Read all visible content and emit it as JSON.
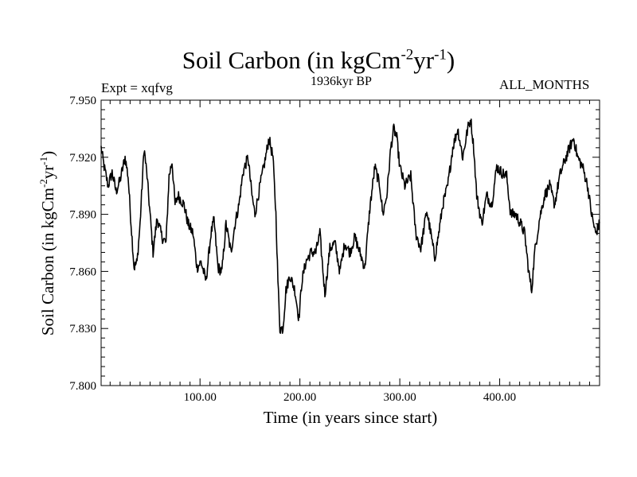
{
  "header": {
    "title_prefix": "Soil Carbon (in kgCm",
    "title_exp1": "-2",
    "title_mid": "yr",
    "title_exp2": "-1",
    "title_suffix": ")",
    "experiment": "Expt = xqfvg",
    "period": "1936kyr BP",
    "months": "ALL_MONTHS"
  },
  "axes": {
    "xlabel": "Time (in years since start)",
    "ylabel_prefix": "Soil Carbon (in kgCm",
    "ylabel_exp1": "-2",
    "ylabel_mid": "yr",
    "ylabel_exp2": "-1",
    "ylabel_suffix": ")"
  },
  "chart_data": {
    "type": "line",
    "title": "Soil Carbon (in kgCm-2yr-1)",
    "xlabel": "Time (in years since start)",
    "ylabel": "Soil Carbon (in kgCm-2yr-1)",
    "xlim": [
      1,
      500
    ],
    "ylim": [
      7.8,
      7.95
    ],
    "x_ticks": [
      100,
      200,
      300,
      400
    ],
    "x_tick_labels": [
      "100.00",
      "200.00",
      "300.00",
      "400.00"
    ],
    "y_ticks": [
      7.8,
      7.83,
      7.86,
      7.89,
      7.92,
      7.95
    ],
    "y_tick_labels": [
      "7.800",
      "7.830",
      "7.860",
      "7.890",
      "7.920",
      "7.950"
    ],
    "grid": false,
    "line_color": "#000000",
    "noise_amplitude": 0.006,
    "series": [
      {
        "name": "Soil Carbon",
        "anchors": [
          [
            1,
            7.925
          ],
          [
            4,
            7.915
          ],
          [
            8,
            7.905
          ],
          [
            12,
            7.912
          ],
          [
            16,
            7.902
          ],
          [
            20,
            7.908
          ],
          [
            25,
            7.92
          ],
          [
            28,
            7.91
          ],
          [
            31,
            7.885
          ],
          [
            34,
            7.862
          ],
          [
            37,
            7.865
          ],
          [
            40,
            7.885
          ],
          [
            44,
            7.925
          ],
          [
            47,
            7.91
          ],
          [
            50,
            7.89
          ],
          [
            53,
            7.87
          ],
          [
            57,
            7.888
          ],
          [
            62,
            7.878
          ],
          [
            66,
            7.875
          ],
          [
            69,
            7.91
          ],
          [
            72,
            7.918
          ],
          [
            75,
            7.895
          ],
          [
            78,
            7.9
          ],
          [
            84,
            7.895
          ],
          [
            88,
            7.885
          ],
          [
            93,
            7.88
          ],
          [
            97,
            7.862
          ],
          [
            101,
            7.865
          ],
          [
            106,
            7.855
          ],
          [
            111,
            7.88
          ],
          [
            114,
            7.887
          ],
          [
            118,
            7.862
          ],
          [
            122,
            7.86
          ],
          [
            126,
            7.885
          ],
          [
            131,
            7.87
          ],
          [
            135,
            7.885
          ],
          [
            139,
            7.895
          ],
          [
            143,
            7.912
          ],
          [
            148,
            7.92
          ],
          [
            152,
            7.9
          ],
          [
            155,
            7.89
          ],
          [
            160,
            7.905
          ],
          [
            165,
            7.918
          ],
          [
            169,
            7.93
          ],
          [
            173,
            7.92
          ],
          [
            176,
            7.89
          ],
          [
            178,
            7.855
          ],
          [
            180,
            7.83
          ],
          [
            183,
            7.83
          ],
          [
            186,
            7.85
          ],
          [
            190,
            7.858
          ],
          [
            195,
            7.85
          ],
          [
            199,
            7.835
          ],
          [
            202,
            7.855
          ],
          [
            206,
            7.865
          ],
          [
            211,
            7.87
          ],
          [
            216,
            7.87
          ],
          [
            220,
            7.88
          ],
          [
            225,
            7.848
          ],
          [
            230,
            7.872
          ],
          [
            235,
            7.875
          ],
          [
            240,
            7.86
          ],
          [
            245,
            7.875
          ],
          [
            250,
            7.87
          ],
          [
            255,
            7.878
          ],
          [
            260,
            7.87
          ],
          [
            265,
            7.862
          ],
          [
            270,
            7.893
          ],
          [
            275,
            7.915
          ],
          [
            280,
            7.905
          ],
          [
            283,
            7.89
          ],
          [
            287,
            7.9
          ],
          [
            291,
            7.925
          ],
          [
            294,
            7.935
          ],
          [
            297,
            7.93
          ],
          [
            300,
            7.915
          ],
          [
            305,
            7.905
          ],
          [
            311,
            7.91
          ],
          [
            316,
            7.88
          ],
          [
            321,
            7.872
          ],
          [
            327,
            7.892
          ],
          [
            331,
            7.88
          ],
          [
            335,
            7.867
          ],
          [
            339,
            7.88
          ],
          [
            343,
            7.895
          ],
          [
            348,
            7.905
          ],
          [
            353,
            7.925
          ],
          [
            358,
            7.935
          ],
          [
            363,
            7.92
          ],
          [
            368,
            7.935
          ],
          [
            371,
            7.94
          ],
          [
            374,
            7.925
          ],
          [
            377,
            7.9
          ],
          [
            382,
            7.885
          ],
          [
            387,
            7.9
          ],
          [
            392,
            7.895
          ],
          [
            397,
            7.915
          ],
          [
            402,
            7.912
          ],
          [
            407,
            7.91
          ],
          [
            411,
            7.89
          ],
          [
            416,
            7.89
          ],
          [
            421,
            7.885
          ],
          [
            425,
            7.88
          ],
          [
            429,
            7.86
          ],
          [
            432,
            7.85
          ],
          [
            435,
            7.87
          ],
          [
            440,
            7.888
          ],
          [
            445,
            7.9
          ],
          [
            450,
            7.905
          ],
          [
            455,
            7.895
          ],
          [
            460,
            7.91
          ],
          [
            465,
            7.918
          ],
          [
            470,
            7.925
          ],
          [
            474,
            7.93
          ],
          [
            478,
            7.92
          ],
          [
            483,
            7.915
          ],
          [
            488,
            7.905
          ],
          [
            492,
            7.89
          ],
          [
            496,
            7.88
          ],
          [
            500,
            7.885
          ]
        ]
      }
    ]
  }
}
